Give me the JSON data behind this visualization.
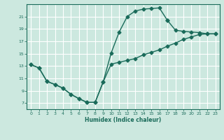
{
  "xlabel": "Humidex (Indice chaleur)",
  "xlim": [
    -0.5,
    23.5
  ],
  "ylim": [
    6,
    23
  ],
  "xticks": [
    0,
    1,
    2,
    3,
    4,
    5,
    6,
    7,
    8,
    9,
    10,
    11,
    12,
    13,
    14,
    15,
    16,
    17,
    18,
    19,
    20,
    21,
    22,
    23
  ],
  "yticks": [
    7,
    9,
    11,
    13,
    15,
    17,
    19,
    21
  ],
  "bg_color": "#cce8df",
  "grid_color": "#ffffff",
  "line_color": "#1a6b5a",
  "lines": [
    {
      "x": [
        0,
        1,
        2,
        3,
        4,
        5,
        6,
        7,
        8,
        9,
        10,
        11,
        12,
        13,
        14,
        15,
        16,
        17
      ],
      "y": [
        13.2,
        12.7,
        10.5,
        10.0,
        9.4,
        8.4,
        7.7,
        7.1,
        7.1,
        10.4,
        15.1,
        18.5,
        21.0,
        21.9,
        22.2,
        22.3,
        22.4,
        20.4
      ]
    },
    {
      "x": [
        17,
        18,
        19,
        20,
        21,
        22,
        23
      ],
      "y": [
        20.4,
        18.8,
        18.6,
        18.5,
        18.4,
        18.2,
        18.2
      ]
    },
    {
      "x": [
        0,
        1,
        2,
        3,
        4,
        5,
        6,
        7,
        8,
        9,
        10,
        11,
        12,
        13,
        14,
        15,
        16,
        17,
        18,
        19,
        20,
        21,
        22,
        23
      ],
      "y": [
        13.2,
        12.7,
        10.5,
        10.0,
        9.4,
        8.4,
        7.7,
        7.1,
        7.1,
        10.4,
        13.3,
        13.6,
        13.9,
        14.2,
        14.8,
        15.2,
        15.6,
        16.2,
        16.7,
        17.3,
        17.7,
        18.1,
        18.2,
        18.2
      ]
    }
  ],
  "marker": "D",
  "markersize": 2.5,
  "linewidth": 1.0
}
